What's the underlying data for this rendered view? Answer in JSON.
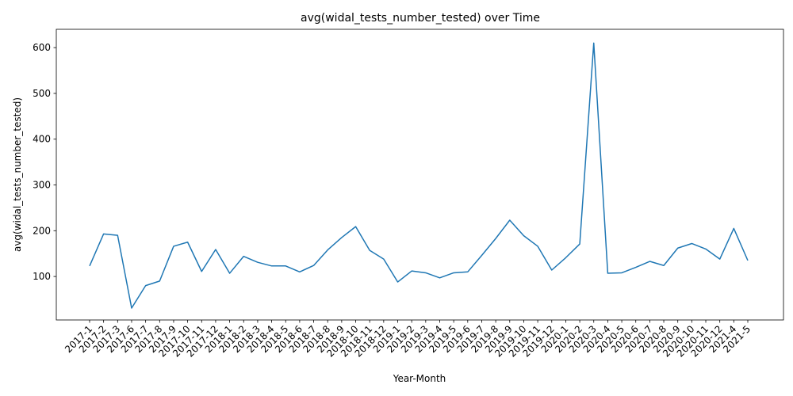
{
  "chart_data": {
    "type": "line",
    "title": "avg(widal_tests_number_tested) over Time",
    "xlabel": "Year-Month",
    "ylabel": "avg(widal_tests_number_tested)",
    "ylim": [
      5,
      640
    ],
    "yticks": [
      100,
      200,
      300,
      400,
      500,
      600
    ],
    "grid": false,
    "legend": "none",
    "line_color": "#1f77b4",
    "x": [
      "2017-1",
      "2017-2",
      "2017-3",
      "2017-6",
      "2017-7",
      "2017-8",
      "2017-9",
      "2017-10",
      "2017-11",
      "2017-12",
      "2018-1",
      "2018-2",
      "2018-3",
      "2018-4",
      "2018-5",
      "2018-6",
      "2018-7",
      "2018-8",
      "2018-9",
      "2018-10",
      "2018-11",
      "2018-12",
      "2019-1",
      "2019-2",
      "2019-3",
      "2019-4",
      "2019-5",
      "2019-6",
      "2019-7",
      "2019-8",
      "2019-9",
      "2019-10",
      "2019-11",
      "2019-12",
      "2020-1",
      "2020-2",
      "2020-3",
      "2020-4",
      "2020-5",
      "2020-6",
      "2020-7",
      "2020-8",
      "2020-9",
      "2020-10",
      "2020-11",
      "2020-12",
      "2021-4",
      "2021-5"
    ],
    "values": [
      123,
      193,
      190,
      31,
      80,
      90,
      166,
      175,
      111,
      159,
      107,
      144,
      131,
      123,
      123,
      110,
      124,
      158,
      185,
      209,
      157,
      138,
      88,
      112,
      108,
      97,
      108,
      110,
      146,
      183,
      223,
      189,
      166,
      114,
      141,
      171,
      610,
      107,
      108,
      120,
      133,
      124,
      162,
      172,
      160,
      138,
      205,
      135
    ]
  }
}
